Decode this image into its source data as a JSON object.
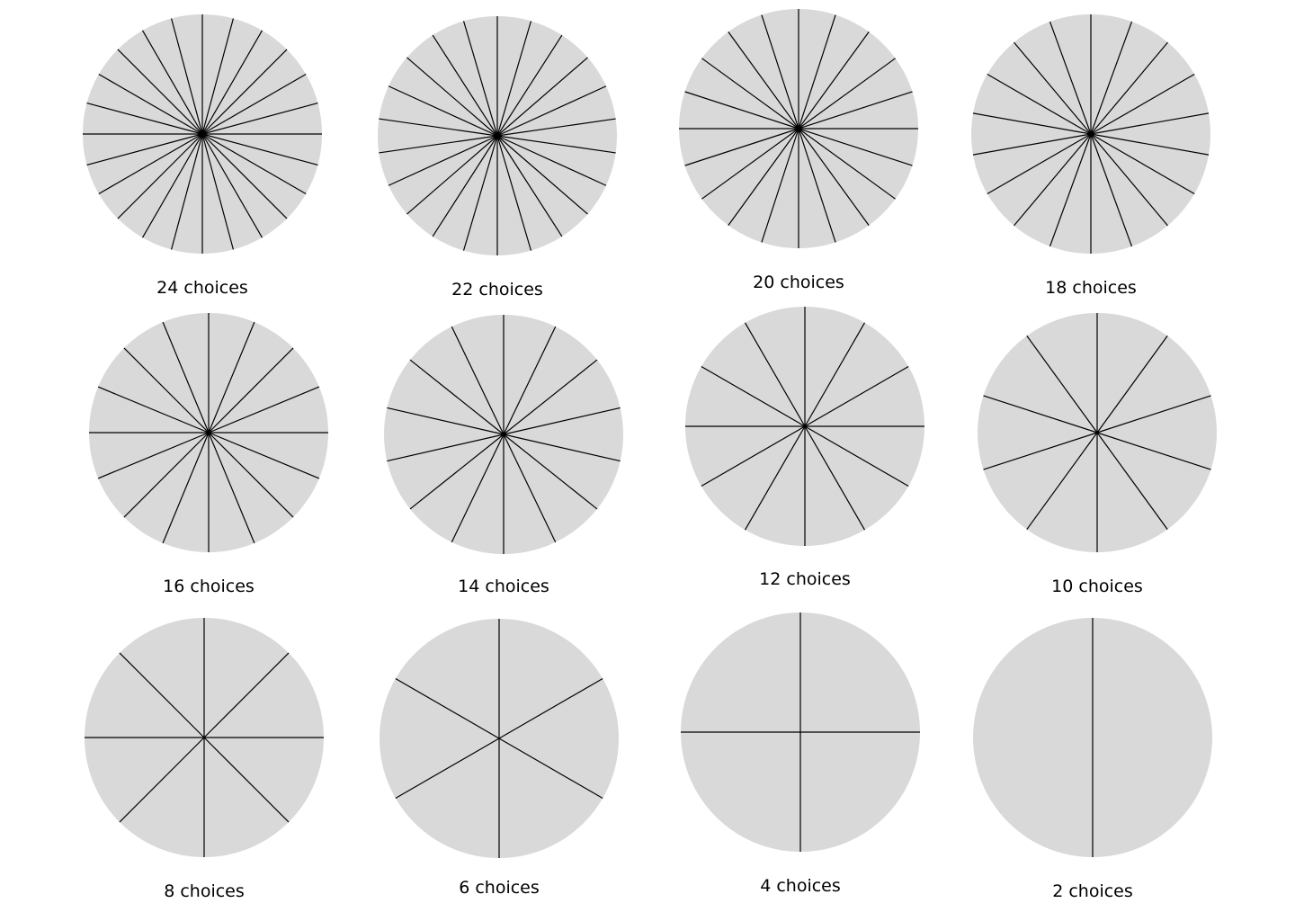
{
  "style": {
    "wheel_fill": "#d9d9d9",
    "spoke_color": "#000000",
    "background": "#ffffff"
  },
  "wheels": [
    {
      "choices": 24,
      "label": "24 choices"
    },
    {
      "choices": 22,
      "label": "22 choices"
    },
    {
      "choices": 20,
      "label": "20 choices"
    },
    {
      "choices": 18,
      "label": "18 choices"
    },
    {
      "choices": 16,
      "label": "16 choices"
    },
    {
      "choices": 14,
      "label": "14 choices"
    },
    {
      "choices": 12,
      "label": "12 choices"
    },
    {
      "choices": 10,
      "label": "10 choices"
    },
    {
      "choices": 8,
      "label": "8 choices"
    },
    {
      "choices": 6,
      "label": "6 choices"
    },
    {
      "choices": 4,
      "label": "4 choices"
    },
    {
      "choices": 2,
      "label": "2 choices"
    }
  ]
}
